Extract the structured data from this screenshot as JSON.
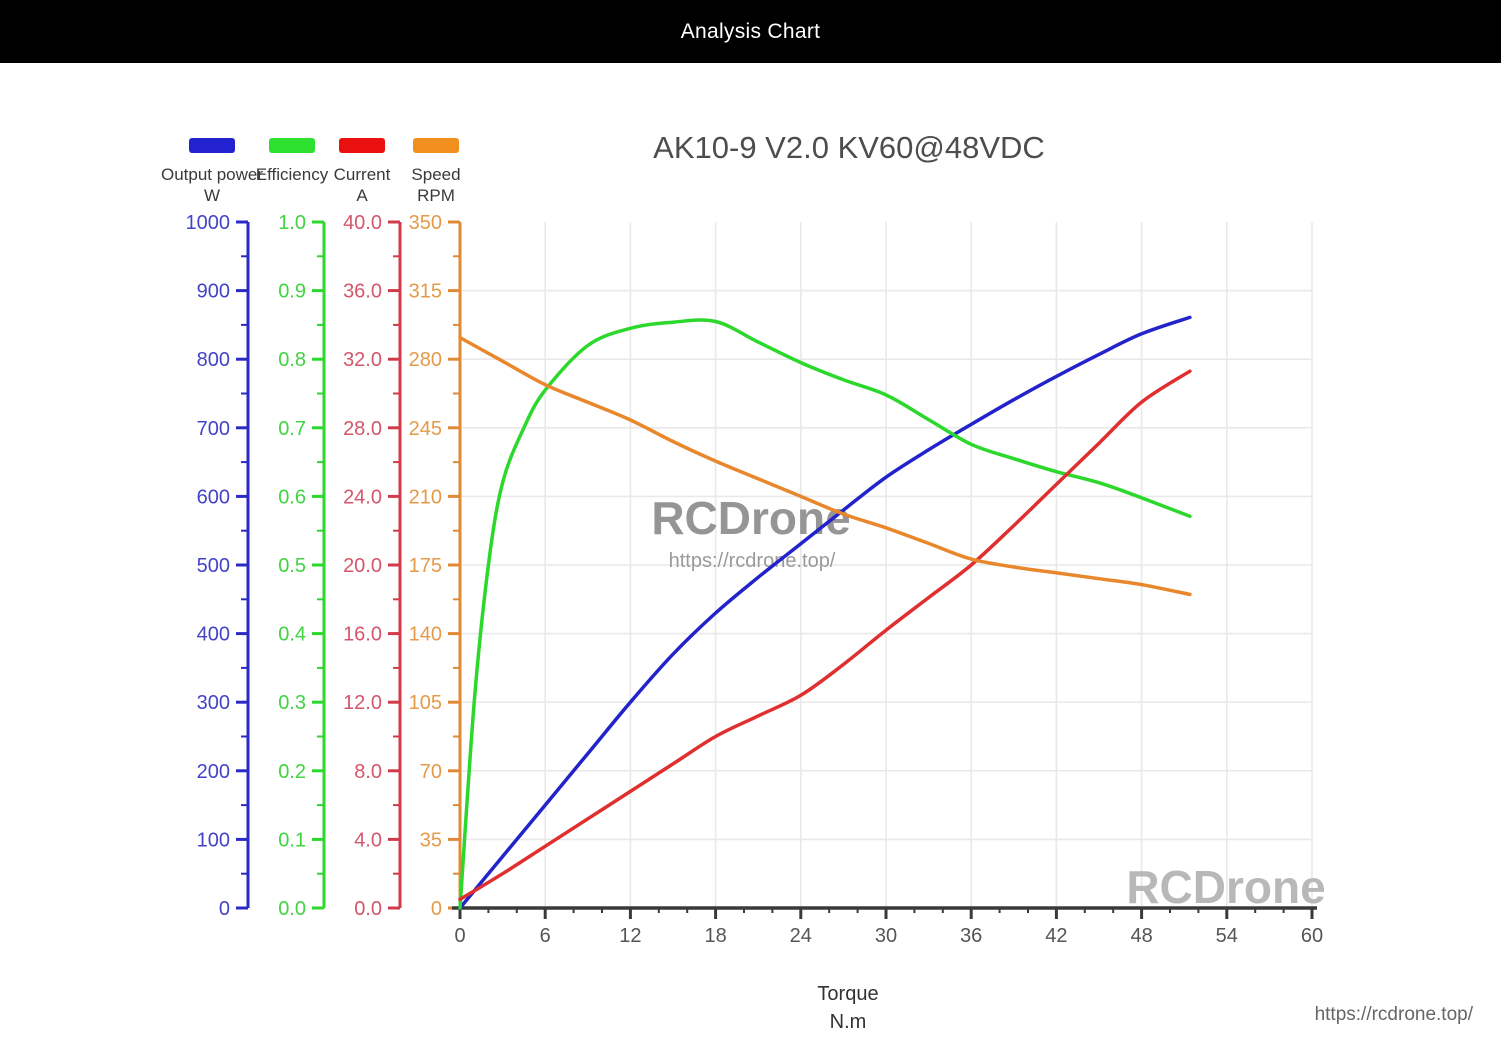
{
  "header": {
    "title": "Analysis Chart"
  },
  "chart": {
    "title": "AK10-9 V2.0 KV60@48VDC",
    "x_axis": {
      "label_line1": "Torque",
      "label_line2": "N.m",
      "min": 0,
      "max": 60,
      "major_step": 6,
      "minor_step": 2,
      "line_color": "#3a3a3a",
      "tick_label_color": "#555555"
    },
    "y_axes": [
      {
        "id": "power",
        "name": "Output power",
        "unit": "W",
        "min": 0,
        "max": 1000,
        "major_step": 100,
        "decimals": 0,
        "axis_color": "#2a2ac6",
        "label_color": "#4343c6",
        "swatch_color": "#2222d0"
      },
      {
        "id": "efficiency",
        "name": "Efficiency",
        "unit": "",
        "min": 0,
        "max": 1,
        "major_step": 0.1,
        "decimals": 1,
        "axis_color": "#2bd82b",
        "label_color": "#41d341",
        "swatch_color": "#2ee12e"
      },
      {
        "id": "current",
        "name": "Current",
        "unit": "A",
        "min": 0,
        "max": 40,
        "major_step": 4,
        "decimals": 1,
        "axis_color": "#d03a4a",
        "label_color": "#d4566b",
        "swatch_color": "#ea1010"
      },
      {
        "id": "speed",
        "name": "Speed",
        "unit": "RPM",
        "min": 0,
        "max": 350,
        "major_step": 35,
        "decimals": 0,
        "axis_color": "#e08a35",
        "label_color": "#e59a48",
        "swatch_color": "#f08e1e"
      }
    ],
    "grid_color": "#e9e9e9"
  },
  "chart_data": {
    "type": "line",
    "title": "AK10-9 V2.0 KV60@48VDC",
    "xlabel": "Torque (N.m)",
    "x_range": [
      0,
      60
    ],
    "grid": true,
    "legend_position": "top-left",
    "series": [
      {
        "name": "Output power (W)",
        "color": "#2323cb",
        "axis": "power",
        "axis_range": [
          0,
          1000
        ],
        "x": [
          0,
          3,
          6,
          9,
          12,
          15,
          18,
          21,
          24,
          27,
          30,
          33,
          36,
          39,
          42,
          45,
          48,
          51.4
        ],
        "y": [
          0,
          75,
          150,
          225,
          300,
          370,
          430,
          482,
          531,
          580,
          628,
          668,
          705,
          741,
          775,
          807,
          837,
          861
        ]
      },
      {
        "name": "Efficiency",
        "color": "#2bd82b",
        "axis": "efficiency",
        "axis_range": [
          0,
          1
        ],
        "x": [
          0,
          1,
          2,
          3,
          4.5,
          6,
          9,
          12,
          15,
          18,
          21,
          24,
          27,
          30,
          33,
          36,
          39,
          42,
          45,
          48,
          51.4
        ],
        "y": [
          0,
          0.3,
          0.5,
          0.62,
          0.7,
          0.755,
          0.82,
          0.845,
          0.854,
          0.855,
          0.825,
          0.795,
          0.77,
          0.748,
          0.712,
          0.676,
          0.655,
          0.636,
          0.62,
          0.598,
          0.571
        ]
      },
      {
        "name": "Current (A)",
        "color": "#df2f2f",
        "axis": "current",
        "axis_range": [
          0,
          40
        ],
        "x": [
          0,
          3,
          6,
          9,
          12,
          15,
          18,
          21,
          24,
          27,
          30,
          33,
          36,
          39,
          42,
          45,
          48,
          51.4
        ],
        "y": [
          0.5,
          2.0,
          3.6,
          5.2,
          6.8,
          8.4,
          10.0,
          11.2,
          12.4,
          14.2,
          16.2,
          18.1,
          20.0,
          22.3,
          24.7,
          27.1,
          29.5,
          31.3
        ]
      },
      {
        "name": "Speed (RPM)",
        "color": "#e8872b",
        "axis": "speed",
        "axis_range": [
          0,
          350
        ],
        "x": [
          0,
          3,
          6,
          9,
          12,
          15,
          18,
          21,
          24,
          27,
          30,
          33,
          36,
          39,
          42,
          45,
          48,
          51.4
        ],
        "y": [
          291,
          279,
          267,
          258,
          249,
          238,
          228,
          219,
          210,
          201,
          194,
          186,
          178,
          174,
          171,
          168,
          165,
          160
        ]
      }
    ]
  },
  "watermarks": {
    "center_text": "RCDrone",
    "center_url": "https://rcdrone.top/",
    "bottom_text": "RCDrone",
    "center_color": "#8a8a8a",
    "bottom_color": "#b8b8b8",
    "url_color": "#9a9a9a"
  },
  "footer": {
    "url": "https://rcdrone.top/"
  }
}
